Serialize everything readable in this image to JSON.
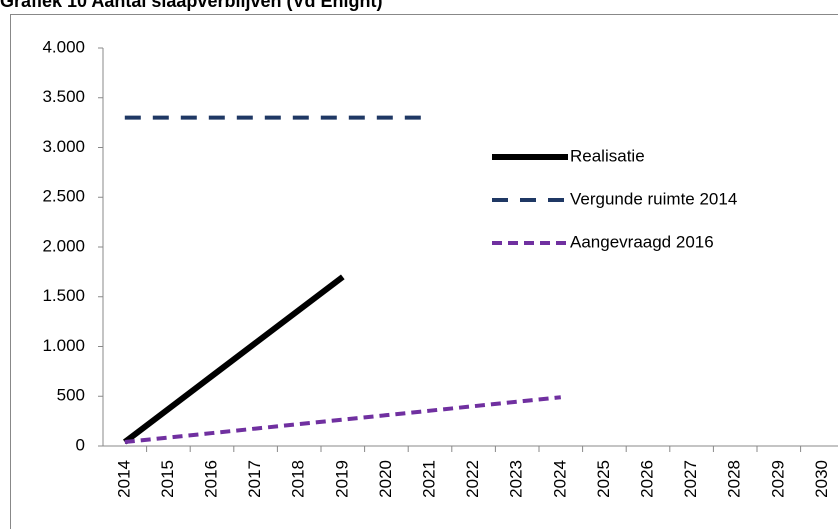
{
  "chart_data": {
    "type": "line",
    "title": "Grafiek 10 Aantal slaapverblijven (Vd Enight)",
    "categories": [
      "2014",
      "2015",
      "2016",
      "2017",
      "2018",
      "2019",
      "2020",
      "2021",
      "2022",
      "2023",
      "2024",
      "2025",
      "2026",
      "2027",
      "2028",
      "2029",
      "2030"
    ],
    "series": [
      {
        "name": "Realisatie",
        "color": "#000000",
        "dash": "solid",
        "values": [
          40,
          372,
          704,
          1036,
          1368,
          1700,
          null,
          null,
          null,
          null,
          null,
          null,
          null,
          null,
          null,
          null,
          null
        ]
      },
      {
        "name": "Vergunde ruimte 2014",
        "color": "#1f3864",
        "dash": "long",
        "values": [
          3300,
          3300,
          3300,
          3300,
          3300,
          3300,
          3300,
          3300,
          null,
          null,
          null,
          null,
          null,
          null,
          null,
          null,
          null
        ]
      },
      {
        "name": "Aangevraagd 2016",
        "color": "#7030a0",
        "dash": "short",
        "values": [
          40,
          85,
          130,
          175,
          220,
          265,
          310,
          355,
          400,
          445,
          490,
          null,
          null,
          null,
          null,
          null,
          null
        ]
      }
    ],
    "ylim": [
      0,
      4000
    ],
    "yticks": [
      0,
      500,
      {
        "value": 1000,
        "label": "1.000"
      },
      {
        "value": 1500,
        "label": "1.500"
      },
      {
        "value": 2000,
        "label": "2.000"
      },
      {
        "value": 2500,
        "label": "2.500"
      },
      {
        "value": 3000,
        "label": "3.000"
      },
      {
        "value": 3500,
        "label": "3.500"
      },
      {
        "value": 4000,
        "label": "4.000"
      }
    ],
    "grid": false,
    "legend": "right"
  }
}
